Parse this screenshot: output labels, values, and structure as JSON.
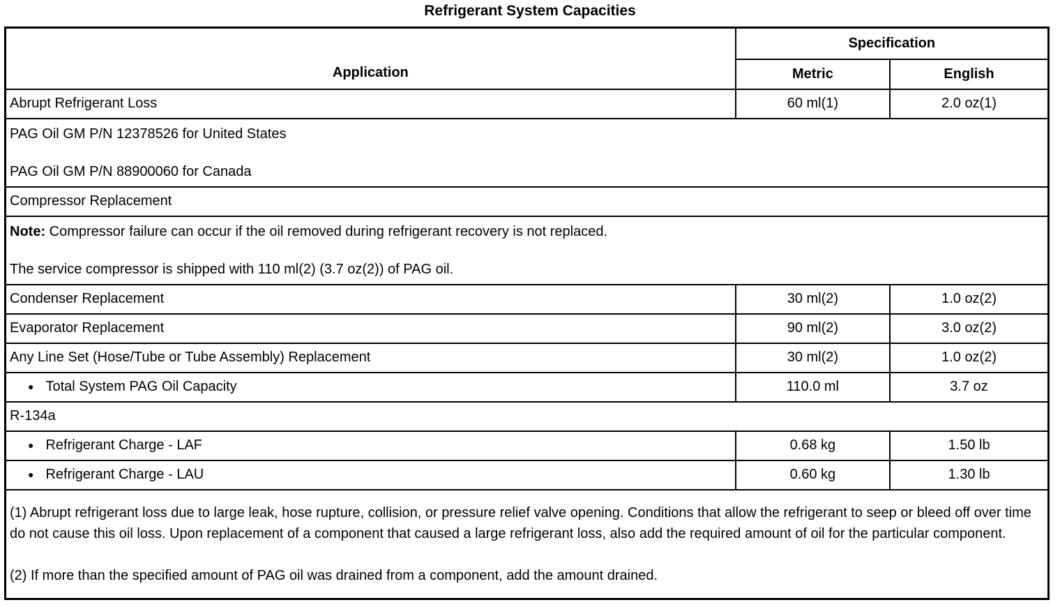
{
  "title": "Refrigerant System Capacities",
  "icons": {
    "bullet": "●"
  },
  "colors": {
    "text": "#000000",
    "background": "#ffffff",
    "border": "#000000"
  },
  "table": {
    "header": {
      "application": "Application",
      "specification": "Specification",
      "metric": "Metric",
      "english": "English"
    },
    "rows": {
      "abrupt_loss": {
        "application": "Abrupt Refrigerant Loss",
        "metric": "60 ml(1)",
        "english": "2.0 oz(1)"
      },
      "pag_oil": {
        "line1": "PAG Oil GM P/N 12378526 for United States",
        "line2": "PAG Oil GM P/N 88900060 for Canada"
      },
      "compressor": {
        "application": "Compressor Replacement"
      },
      "note": {
        "label": "Note:",
        "text": "Compressor failure can occur if the oil removed during refrigerant recovery is not replaced.",
        "text2": "The service compressor is shipped with 110 ml(2) (3.7 oz(2)) of PAG oil."
      },
      "condenser": {
        "application": "Condenser Replacement",
        "metric": "30 ml(2)",
        "english": "1.0 oz(2)"
      },
      "evaporator": {
        "application": "Evaporator Replacement",
        "metric": "90 ml(2)",
        "english": "3.0 oz(2)"
      },
      "line_set": {
        "application": "Any Line Set (Hose/Tube or Tube Assembly) Replacement",
        "metric": "30 ml(2)",
        "english": "1.0 oz(2)"
      },
      "total_pag": {
        "application": "Total System PAG Oil Capacity",
        "metric": "110.0 ml",
        "english": "3.7 oz"
      },
      "r134a": {
        "application": "R-134a"
      },
      "charge_laf": {
        "application": "Refrigerant Charge - LAF",
        "metric": "0.68 kg",
        "english": "1.50 lb"
      },
      "charge_lau": {
        "application": "Refrigerant Charge - LAU",
        "metric": "0.60 kg",
        "english": "1.30 lb"
      }
    },
    "footnotes": [
      "(1) Abrupt refrigerant loss due to large leak, hose rupture, collision, or pressure relief valve opening. Conditions that allow the refrigerant to seep or bleed off over time do not cause this oil loss. Upon replacement of a component that caused a large refrigerant loss, also add the required amount of oil for the particular component.",
      "(2) If more than the specified amount of PAG oil was drained from a component, add the amount drained."
    ]
  }
}
